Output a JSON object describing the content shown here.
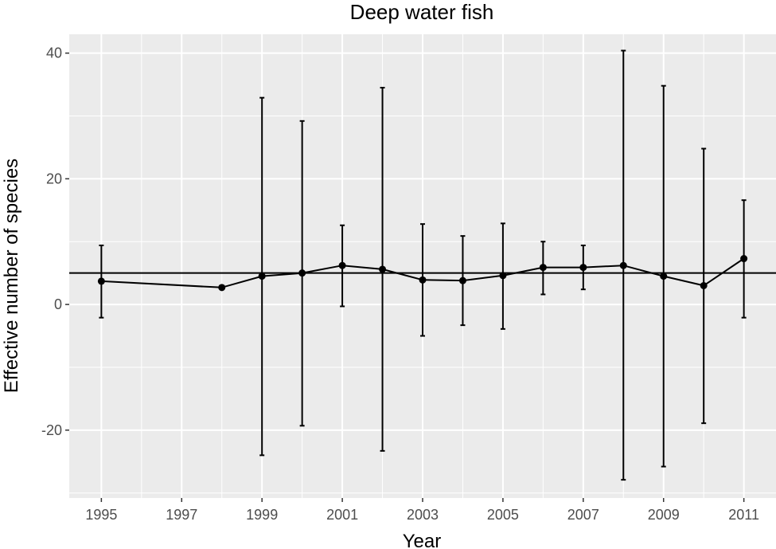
{
  "chart_data": {
    "type": "line",
    "title": "Deep water fish",
    "xlabel": "Year",
    "ylabel": "Effective number of species",
    "xlim": [
      1994.2,
      2011.8
    ],
    "ylim": [
      -30.8,
      43.0
    ],
    "x_ticks": [
      1995,
      1997,
      1999,
      2001,
      2003,
      2005,
      2007,
      2009,
      2011
    ],
    "y_ticks": [
      -20,
      0,
      20,
      40
    ],
    "y_tick_labels": [
      "-20",
      "0",
      "20",
      "40"
    ],
    "reference_line": 5.0,
    "grid": true,
    "legend": "none",
    "series": [
      {
        "x": [
          1995,
          1998,
          1999,
          2000,
          2001,
          2002,
          2003,
          2004,
          2005,
          2006,
          2007,
          2008,
          2009,
          2010,
          2011
        ],
        "values": [
          3.7,
          2.7,
          4.5,
          5.0,
          6.2,
          5.6,
          3.9,
          3.8,
          4.6,
          5.9,
          5.9,
          6.2,
          4.5,
          3.0,
          7.3
        ],
        "lower": [
          -2.1,
          null,
          -24.0,
          -19.3,
          -0.3,
          -23.3,
          -5.0,
          -3.3,
          -3.9,
          1.6,
          2.4,
          -27.9,
          -25.8,
          -18.9,
          -2.1
        ],
        "upper": [
          9.4,
          null,
          32.9,
          29.2,
          12.6,
          34.5,
          12.8,
          10.9,
          12.9,
          10.0,
          9.4,
          40.4,
          34.8,
          24.8,
          16.6
        ]
      }
    ]
  },
  "colors": {
    "panel_background": "#ebebeb",
    "grid": "#ffffff",
    "series": "#000000",
    "tick_label": "#4d4d4d"
  }
}
